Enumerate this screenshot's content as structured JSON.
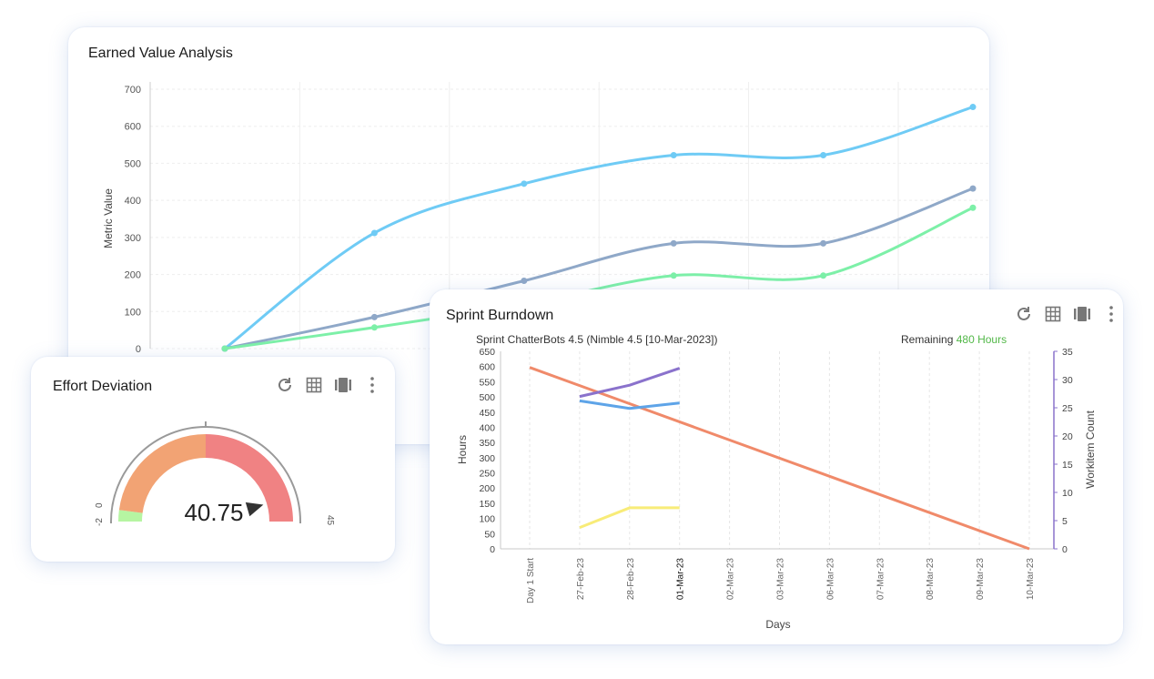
{
  "earned_value": {
    "title": "Earned Value Analysis",
    "chart_data": {
      "type": "line",
      "title": "Earned Value Analysis",
      "ylabel": "Metric Value",
      "ylim": [
        0,
        700
      ],
      "yticks": [
        "700",
        "600",
        "500",
        "400",
        "300",
        "200",
        "100",
        "0"
      ],
      "x": [
        0,
        1,
        2,
        3,
        4,
        5
      ],
      "grid": true,
      "colors": [
        "#6fcbf5",
        "#8fa8c8",
        "#7df0a8"
      ],
      "series": [
        {
          "values": [
            0,
            312,
            445,
            522,
            522,
            652
          ]
        },
        {
          "values": [
            0,
            85,
            183,
            284,
            284,
            432
          ]
        },
        {
          "values": [
            0,
            57,
            120,
            197,
            197,
            380
          ]
        }
      ]
    }
  },
  "effort_deviation": {
    "title": "Effort Deviation",
    "icons": [
      "refresh-icon",
      "table-icon",
      "columns-icon",
      "more-icon"
    ],
    "chart_data": {
      "type": "gauge",
      "value": "40.75",
      "value_num": 40.75,
      "min_label": "-2",
      "zero_label": "0",
      "max_label": "45",
      "min": -2,
      "max": 45,
      "bands": [
        {
          "from": -2,
          "to": 0,
          "color": "#b6f5a2"
        },
        {
          "from": 0,
          "to": 21.5,
          "color": "#f2a374"
        },
        {
          "from": 21.5,
          "to": 45,
          "color": "#f08283"
        }
      ]
    }
  },
  "sprint_burndown": {
    "title": "Sprint Burndown",
    "icons": [
      "refresh-icon",
      "table-icon",
      "columns-icon",
      "more-icon"
    ],
    "subtitle": "Sprint ChatterBots 4.5 (Nimble 4.5 [10-Mar-2023])",
    "remaining_label": "Remaining",
    "remaining_value": "480 Hours",
    "chart_data": {
      "type": "line",
      "xlabel": "Days",
      "ylabel": "Hours",
      "y2label": "Workitem Count",
      "categories": [
        "Day 1 Start",
        "27-Feb-23",
        "28-Feb-23",
        "01-Mar-23",
        "02-Mar-23",
        "03-Mar-23",
        "06-Mar-23",
        "07-Mar-23",
        "08-Mar-23",
        "09-Mar-23",
        "10-Mar-23"
      ],
      "highlight_category": "01-Mar-23",
      "ylim": [
        0,
        650
      ],
      "yticks": [
        "650",
        "600",
        "550",
        "500",
        "450",
        "400",
        "350",
        "300",
        "250",
        "200",
        "150",
        "100",
        "50",
        "0"
      ],
      "y2lim": [
        0,
        35
      ],
      "y2ticks": [
        "35",
        "30",
        "25",
        "20",
        "15",
        "10",
        "5",
        "0"
      ],
      "series": [
        {
          "color": "#f08a6a",
          "axis": "left",
          "values": [
            597,
            null,
            null,
            null,
            null,
            null,
            null,
            null,
            null,
            null,
            0
          ]
        },
        {
          "color": "#5ea4e8",
          "axis": "left",
          "values": [
            null,
            487,
            462,
            480,
            null,
            null,
            null,
            null,
            null,
            null,
            null
          ]
        },
        {
          "color": "#8a72cc",
          "axis": "right",
          "values": [
            null,
            27,
            29,
            32,
            null,
            null,
            null,
            null,
            null,
            null,
            null
          ]
        },
        {
          "color": "#f8ec78",
          "axis": "left",
          "values": [
            null,
            70,
            135,
            135,
            null,
            null,
            null,
            null,
            null,
            null,
            null
          ]
        }
      ]
    }
  },
  "colors": {
    "remaining_green": "#52b848",
    "icon_gray": "#777777"
  }
}
